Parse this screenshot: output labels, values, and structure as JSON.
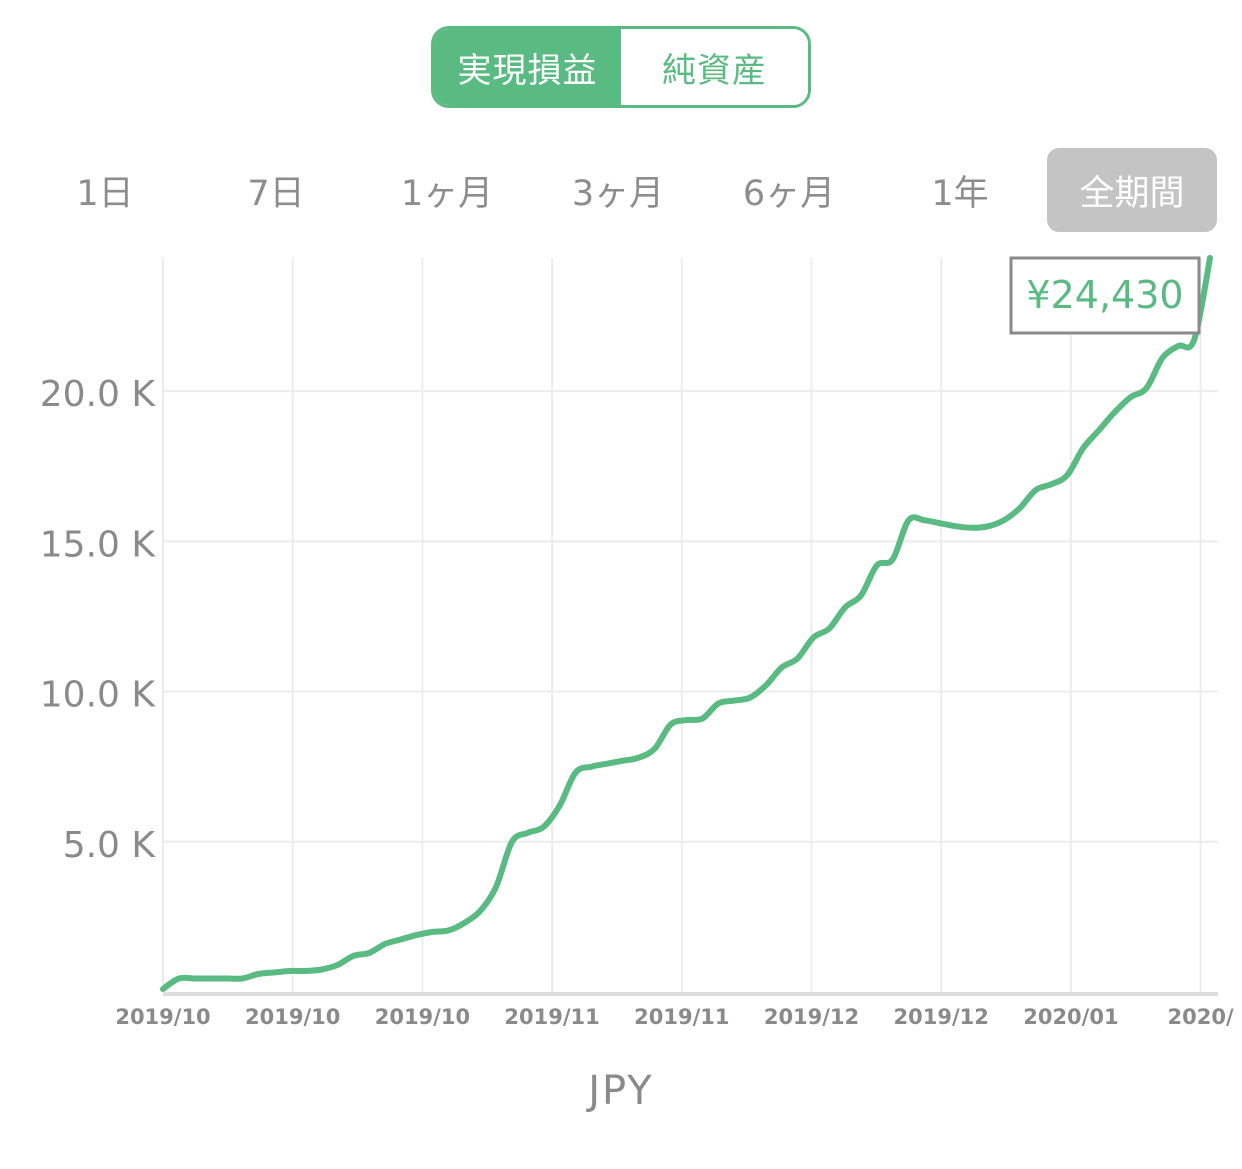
{
  "toggle": {
    "realized_label": "実現損益",
    "net_assets_label": "純資産",
    "active": "realized"
  },
  "periods": [
    "1日",
    "7日",
    "1ヶ月",
    "3ヶ月",
    "6ヶ月",
    "1年",
    "全期間"
  ],
  "selected_period": "全期間",
  "colors": {
    "accent": "#59ba82",
    "selected_period_bg": "#c4c4c4",
    "grid": "#ececec",
    "axis_text": "#8a8a8a",
    "tooltip_border": "#8a8a8a"
  },
  "currency_label": "JPY",
  "chart_data": {
    "type": "line",
    "title": "",
    "xlabel": "JPY",
    "ylabel": "",
    "ylim": [
      0,
      24430
    ],
    "yticks": [
      5000,
      10000,
      15000,
      20000
    ],
    "ytick_labels": [
      "5.0 K",
      "10.0 K",
      "15.0 K",
      "20.0 K"
    ],
    "xtick_labels": [
      "2019/10",
      "2019/10",
      "2019/10",
      "2019/11",
      "2019/11",
      "2019/12",
      "2019/12",
      "2020/01",
      "2020/"
    ],
    "grid": true,
    "tooltip": {
      "label": "¥24,430",
      "value": 24430
    },
    "series": [
      {
        "values": [
          100,
          450,
          450,
          450,
          450,
          450,
          600,
          650,
          700,
          700,
          750,
          900,
          1200,
          1300,
          1600,
          1750,
          1900,
          2000,
          2050,
          2300,
          2700,
          3500,
          5000,
          5300,
          5500,
          6200,
          7300,
          7500,
          7600,
          7700,
          7800,
          8100,
          8900,
          9050,
          9100,
          9600,
          9700,
          9800,
          10200,
          10800,
          11100,
          11800,
          12100,
          12800,
          13200,
          14200,
          14400,
          15700,
          15700,
          15600,
          15500,
          15450,
          15500,
          15700,
          16100,
          16700,
          16900,
          17200,
          18100,
          18700,
          19300,
          19800,
          20100,
          21100,
          21500,
          21700,
          24430
        ]
      }
    ]
  }
}
